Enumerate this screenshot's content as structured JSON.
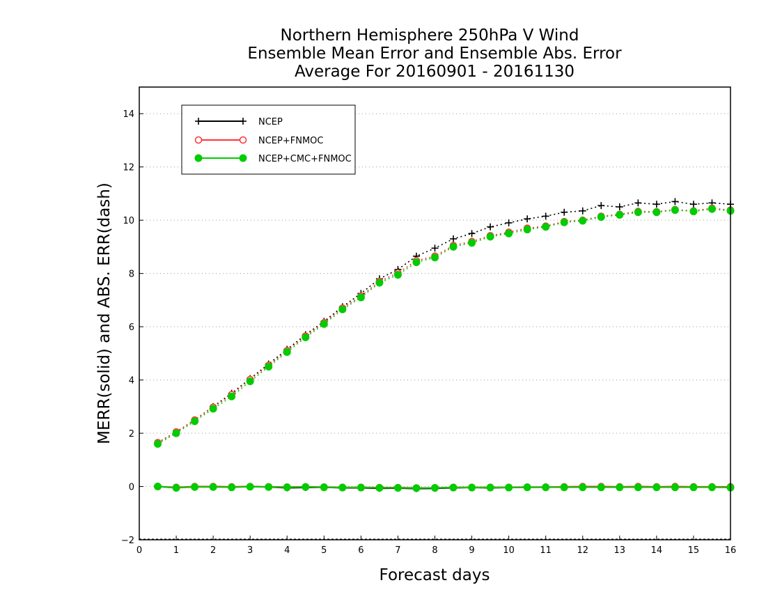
{
  "chart_data": {
    "type": "line",
    "title": [
      "Northern Hemisphere 250hPa V Wind",
      "Ensemble Mean Error and Ensemble Abs. Error",
      "Average For 20160901 - 20161130"
    ],
    "xlabel": "Forecast days",
    "ylabel": "MERR(solid) and ABS. ERR(dash)",
    "xlim": [
      0,
      16
    ],
    "ylim": [
      -2,
      15
    ],
    "xticks": [
      0,
      1,
      2,
      3,
      4,
      5,
      6,
      7,
      8,
      9,
      10,
      11,
      12,
      13,
      14,
      15,
      16
    ],
    "yticks": [
      -2,
      0,
      2,
      4,
      6,
      8,
      10,
      12,
      14
    ],
    "grid": "horizontal-dotted",
    "legend_position": "top-left",
    "x": [
      0.5,
      1,
      1.5,
      2,
      2.5,
      3,
      3.5,
      4,
      4.5,
      5,
      5.5,
      6,
      6.5,
      7,
      7.5,
      8,
      8.5,
      9,
      9.5,
      10,
      10.5,
      11,
      11.5,
      12,
      12.5,
      13,
      13.5,
      14,
      14.5,
      15,
      15.5,
      16
    ],
    "series": [
      {
        "name": "NCEP",
        "color": "#000000",
        "marker": "plus",
        "merr": [
          0.0,
          -0.05,
          0.0,
          0.0,
          -0.02,
          0.0,
          -0.02,
          -0.05,
          -0.04,
          -0.03,
          -0.05,
          -0.05,
          -0.07,
          -0.06,
          -0.08,
          -0.07,
          -0.05,
          -0.04,
          -0.05,
          -0.04,
          -0.03,
          -0.03,
          -0.02,
          -0.02,
          -0.02,
          -0.02,
          -0.02,
          -0.02,
          -0.02,
          -0.02,
          -0.02,
          -0.02
        ],
        "abs_err": [
          1.65,
          2.05,
          2.5,
          3.0,
          3.5,
          4.05,
          4.6,
          5.15,
          5.7,
          6.2,
          6.75,
          7.25,
          7.8,
          8.15,
          8.65,
          8.95,
          9.3,
          9.5,
          9.75,
          9.9,
          10.05,
          10.15,
          10.3,
          10.35,
          10.55,
          10.5,
          10.65,
          10.6,
          10.7,
          10.6,
          10.65,
          10.6
        ]
      },
      {
        "name": "NCEP+FNMOC",
        "color": "#ff3333",
        "marker": "open-circle",
        "merr": [
          0.0,
          -0.03,
          0.0,
          0.0,
          -0.01,
          0.0,
          -0.01,
          -0.02,
          -0.01,
          -0.02,
          -0.03,
          -0.03,
          -0.04,
          -0.04,
          -0.05,
          -0.05,
          -0.03,
          -0.03,
          -0.03,
          -0.03,
          -0.02,
          -0.02,
          -0.01,
          0.0,
          0.0,
          -0.01,
          0.0,
          -0.01,
          0.0,
          -0.01,
          -0.01,
          -0.01
        ],
        "abs_err": [
          1.65,
          2.05,
          2.5,
          2.98,
          3.45,
          4.02,
          4.55,
          5.1,
          5.65,
          6.15,
          6.7,
          7.15,
          7.7,
          8.02,
          8.48,
          8.65,
          9.05,
          9.2,
          9.42,
          9.55,
          9.7,
          9.78,
          9.95,
          10.0,
          10.15,
          10.22,
          10.33,
          10.32,
          10.4,
          10.35,
          10.45,
          10.38
        ]
      },
      {
        "name": "NCEP+CMC+FNMOC",
        "color": "#00cc00",
        "marker": "filled-circle",
        "merr": [
          0.0,
          -0.05,
          -0.02,
          -0.02,
          -0.03,
          -0.01,
          -0.02,
          -0.03,
          -0.02,
          -0.03,
          -0.04,
          -0.04,
          -0.05,
          -0.05,
          -0.06,
          -0.05,
          -0.04,
          -0.04,
          -0.04,
          -0.04,
          -0.03,
          -0.03,
          -0.03,
          -0.03,
          -0.03,
          -0.03,
          -0.03,
          -0.03,
          -0.03,
          -0.03,
          -0.03,
          -0.04
        ],
        "abs_err": [
          1.6,
          2.0,
          2.45,
          2.92,
          3.38,
          3.95,
          4.5,
          5.05,
          5.6,
          6.1,
          6.65,
          7.1,
          7.65,
          7.95,
          8.42,
          8.6,
          9.0,
          9.15,
          9.38,
          9.5,
          9.65,
          9.75,
          9.92,
          9.98,
          10.12,
          10.2,
          10.3,
          10.3,
          10.38,
          10.33,
          10.42,
          10.35
        ]
      }
    ]
  }
}
